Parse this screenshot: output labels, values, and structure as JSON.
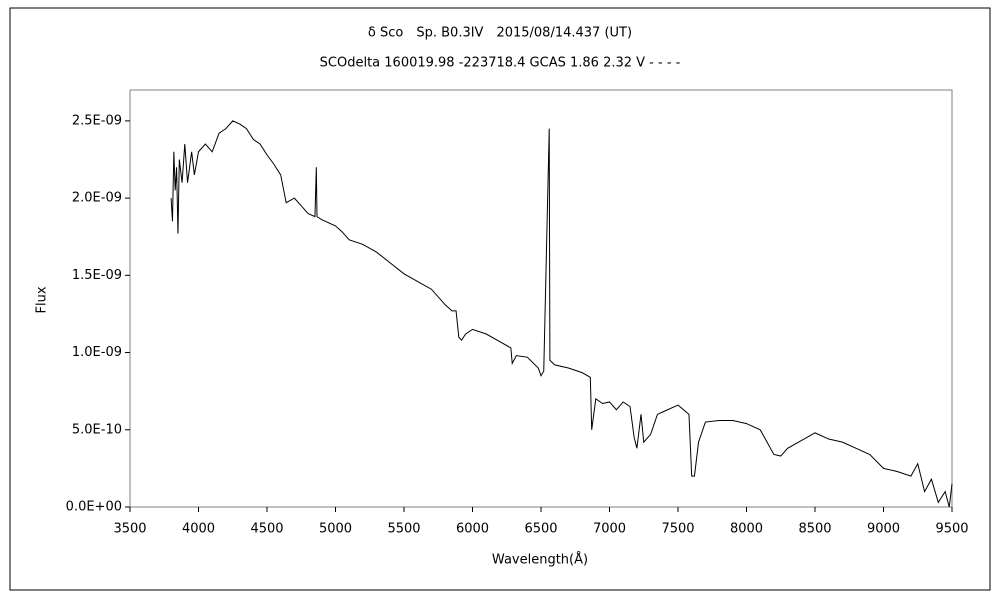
{
  "chart_data": {
    "type": "line",
    "title": "δ Sco　Sp. B0.3IV　2015/08/14.437 (UT)",
    "subtitle": "SCOdelta 160019.98 -223718.4 GCAS 1.86 2.32 V - - - -",
    "xlabel": "Wavelength(Å)",
    "ylabel": "Flux",
    "xlim": [
      3500,
      9500
    ],
    "xticks": [
      3500,
      4000,
      4500,
      5000,
      5500,
      6000,
      6500,
      7000,
      7500,
      8000,
      8500,
      9000,
      9500
    ],
    "ylim": [
      0,
      2.7e-09
    ],
    "yticks": [
      {
        "value": 0,
        "label": "0.0E+00"
      },
      {
        "value": 5e-10,
        "label": "5.0E-10"
      },
      {
        "value": 1e-09,
        "label": "1.0E-09"
      },
      {
        "value": 1.5e-09,
        "label": "1.5E-09"
      },
      {
        "value": 2e-09,
        "label": "2.0E-09"
      },
      {
        "value": 2.5e-09,
        "label": "2.5E-09"
      }
    ],
    "grid": false,
    "series": [
      {
        "color": "#000000",
        "x": [
          3800,
          3810,
          3820,
          3830,
          3840,
          3850,
          3860,
          3880,
          3900,
          3920,
          3950,
          3970,
          4000,
          4050,
          4100,
          4150,
          4200,
          4250,
          4300,
          4350,
          4400,
          4450,
          4500,
          4550,
          4600,
          4640,
          4700,
          4750,
          4800,
          4850,
          4860,
          4865,
          4900,
          5000,
          5050,
          5100,
          5200,
          5300,
          5400,
          5500,
          5600,
          5700,
          5800,
          5850,
          5880,
          5900,
          5920,
          5950,
          6000,
          6100,
          6200,
          6280,
          6290,
          6320,
          6400,
          6480,
          6500,
          6520,
          6560,
          6565,
          6600,
          6700,
          6800,
          6860,
          6870,
          6900,
          6950,
          7000,
          7050,
          7100,
          7150,
          7180,
          7200,
          7230,
          7250,
          7300,
          7350,
          7400,
          7500,
          7580,
          7600,
          7620,
          7650,
          7700,
          7800,
          7900,
          8000,
          8100,
          8150,
          8200,
          8250,
          8300,
          8400,
          8500,
          8600,
          8700,
          8800,
          8900,
          9000,
          9100,
          9200,
          9250,
          9300,
          9350,
          9400,
          9450,
          9480,
          9500
        ],
        "values": [
          2e-09,
          1.85e-09,
          2.3e-09,
          2.05e-09,
          2.2e-09,
          1.77e-09,
          2.25e-09,
          2.1e-09,
          2.35e-09,
          2.1e-09,
          2.3e-09,
          2.15e-09,
          2.3e-09,
          2.35e-09,
          2.3e-09,
          2.42e-09,
          2.45e-09,
          2.5e-09,
          2.48e-09,
          2.45e-09,
          2.38e-09,
          2.35e-09,
          2.28e-09,
          2.22e-09,
          2.15e-09,
          1.97e-09,
          2e-09,
          1.95e-09,
          1.9e-09,
          1.88e-09,
          2.2e-09,
          1.88e-09,
          1.86e-09,
          1.82e-09,
          1.78e-09,
          1.73e-09,
          1.7e-09,
          1.65e-09,
          1.58e-09,
          1.51e-09,
          1.46e-09,
          1.41e-09,
          1.31e-09,
          1.27e-09,
          1.27e-09,
          1.1e-09,
          1.08e-09,
          1.12e-09,
          1.15e-09,
          1.12e-09,
          1.07e-09,
          1.03e-09,
          9.3e-10,
          9.8e-10,
          9.7e-10,
          9e-10,
          8.5e-10,
          8.8e-10,
          2.45e-09,
          9.5e-10,
          9.2e-10,
          9e-10,
          8.7e-10,
          8.4e-10,
          5e-10,
          7e-10,
          6.7e-10,
          6.8e-10,
          6.3e-10,
          6.8e-10,
          6.5e-10,
          4.5e-10,
          3.8e-10,
          6e-10,
          4.2e-10,
          4.7e-10,
          6e-10,
          6.2e-10,
          6.6e-10,
          6e-10,
          2e-10,
          2e-10,
          4.2e-10,
          5.5e-10,
          5.6e-10,
          5.6e-10,
          5.4e-10,
          5e-10,
          4.2e-10,
          3.4e-10,
          3.3e-10,
          3.8e-10,
          4.3e-10,
          4.8e-10,
          4.4e-10,
          4.2e-10,
          3.8e-10,
          3.4e-10,
          2.5e-10,
          2.3e-10,
          2e-10,
          2.8e-10,
          1e-10,
          1.8e-10,
          3e-11,
          1e-10,
          0,
          1.5e-10
        ]
      }
    ]
  }
}
